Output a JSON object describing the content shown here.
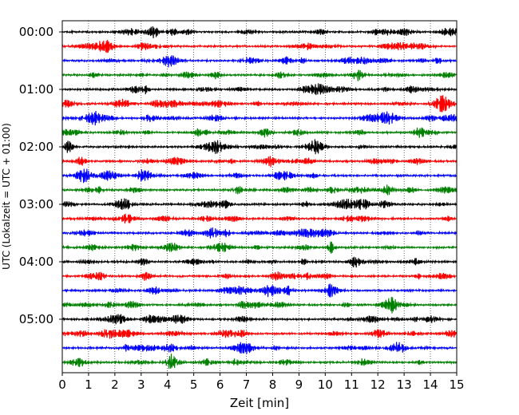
{
  "chart_data": {
    "type": "line",
    "title": "",
    "xlabel": "Zeit  [min]",
    "ylabel": "UTC (Lokalzeit = UTC + 01:00)",
    "xlim": [
      0,
      15
    ],
    "x_ticks": [
      "0",
      "1",
      "2",
      "3",
      "4",
      "5",
      "6",
      "7",
      "8",
      "9",
      "10",
      "11",
      "12",
      "13",
      "14",
      "15"
    ],
    "y_tick_labels": [
      "00:00",
      "01:00",
      "02:00",
      "03:00",
      "04:00",
      "05:00"
    ],
    "trace_interval_min": 15,
    "trace_count": 24,
    "trace_colors": [
      "#000000",
      "#ff0000",
      "#0000ff",
      "#008000"
    ],
    "vertical_grid": true,
    "grid_style": "dotted"
  }
}
